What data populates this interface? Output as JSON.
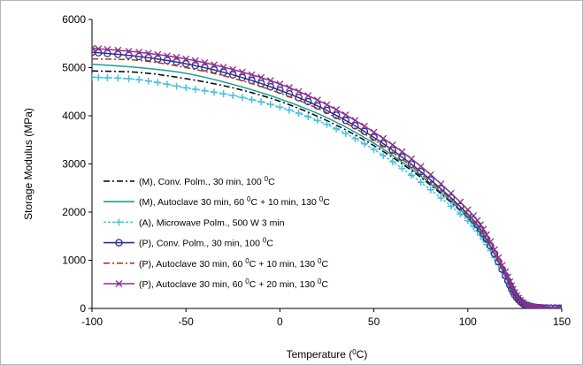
{
  "chart_data": {
    "type": "line",
    "xlabel_prefix": "Temperature (",
    "xlabel_sup": "0",
    "xlabel_suffix": "C)",
    "ylabel": "Storage Modulus (MPa)",
    "xlim": [
      -100,
      150
    ],
    "ylim": [
      0,
      6000
    ],
    "xticks": [
      -100,
      -50,
      0,
      50,
      100,
      150
    ],
    "yticks": [
      0,
      1000,
      2000,
      3000,
      4000,
      5000,
      6000
    ],
    "grid": false,
    "legend_position": "lower-left",
    "series": [
      {
        "name_parts": [
          "(M), Conv. Polm., 30 min, 100 ",
          "0",
          "C"
        ],
        "color": "#000000",
        "dash": "dashdot",
        "marker": "none",
        "x": [
          -100,
          -75,
          -50,
          -25,
          0,
          25,
          50,
          75,
          100,
          110,
          120,
          125,
          130,
          135,
          140,
          150
        ],
        "y": [
          4930,
          4900,
          4770,
          4580,
          4300,
          3900,
          3380,
          2720,
          1880,
          1380,
          700,
          320,
          120,
          40,
          15,
          5
        ]
      },
      {
        "name_parts": [
          "(M), Autoclave 30 min, 60 ",
          "0",
          "C + 10 min, 130 ",
          "0",
          "C"
        ],
        "color": "#1f9e8f",
        "dash": "solid",
        "marker": "none",
        "x": [
          -100,
          -75,
          -50,
          -25,
          0,
          25,
          50,
          75,
          100,
          110,
          120,
          125,
          130,
          135,
          140,
          150
        ],
        "y": [
          5070,
          5000,
          4880,
          4650,
          4350,
          3960,
          3430,
          2750,
          1900,
          1400,
          720,
          340,
          130,
          45,
          15,
          5
        ]
      },
      {
        "name_parts": [
          "(A), Microwave Polm., 500 W 3 min"
        ],
        "color": "#48c0df",
        "dash": "dotted",
        "marker": "plus",
        "x": [
          -100,
          -75,
          -50,
          -25,
          0,
          25,
          50,
          75,
          100,
          110,
          120,
          125,
          130,
          135,
          140,
          150
        ],
        "y": [
          4800,
          4750,
          4580,
          4420,
          4180,
          3820,
          3300,
          2620,
          1820,
          1330,
          650,
          290,
          100,
          35,
          10,
          5
        ]
      },
      {
        "name_parts": [
          "(P), Conv. Polm., 30 min, 100 ",
          "0",
          "C"
        ],
        "color": "#2e2f8c",
        "dash": "solid",
        "marker": "circle",
        "x": [
          -100,
          -75,
          -50,
          -25,
          0,
          25,
          50,
          75,
          100,
          110,
          120,
          125,
          130,
          135,
          140,
          150
        ],
        "y": [
          5320,
          5230,
          5080,
          4850,
          4530,
          4110,
          3550,
          2840,
          1960,
          1440,
          680,
          280,
          80,
          25,
          10,
          5
        ]
      },
      {
        "name_parts": [
          "(P), Autoclave 30 min, 60 ",
          "0",
          "C + 10 min, 130 ",
          "0",
          "C"
        ],
        "color": "#a0401e",
        "dash": "dashdot",
        "marker": "none",
        "x": [
          -100,
          -75,
          -50,
          -25,
          0,
          25,
          50,
          75,
          100,
          110,
          120,
          125,
          130,
          135,
          140,
          150
        ],
        "y": [
          5180,
          5150,
          5000,
          4780,
          4470,
          4060,
          3500,
          2800,
          1940,
          1430,
          690,
          300,
          90,
          30,
          10,
          5
        ]
      },
      {
        "name_parts": [
          "(P), Autoclave 30 min, 60 ",
          "0",
          "C + 20 min, 130 ",
          "0",
          "C"
        ],
        "color": "#8a2f8f",
        "dash": "solid",
        "marker": "x",
        "x": [
          -100,
          -75,
          -50,
          -25,
          0,
          25,
          50,
          75,
          100,
          110,
          120,
          125,
          130,
          135,
          140,
          150
        ],
        "y": [
          5400,
          5320,
          5180,
          4960,
          4660,
          4230,
          3660,
          2950,
          2050,
          1530,
          760,
          330,
          100,
          30,
          10,
          5
        ]
      }
    ]
  }
}
